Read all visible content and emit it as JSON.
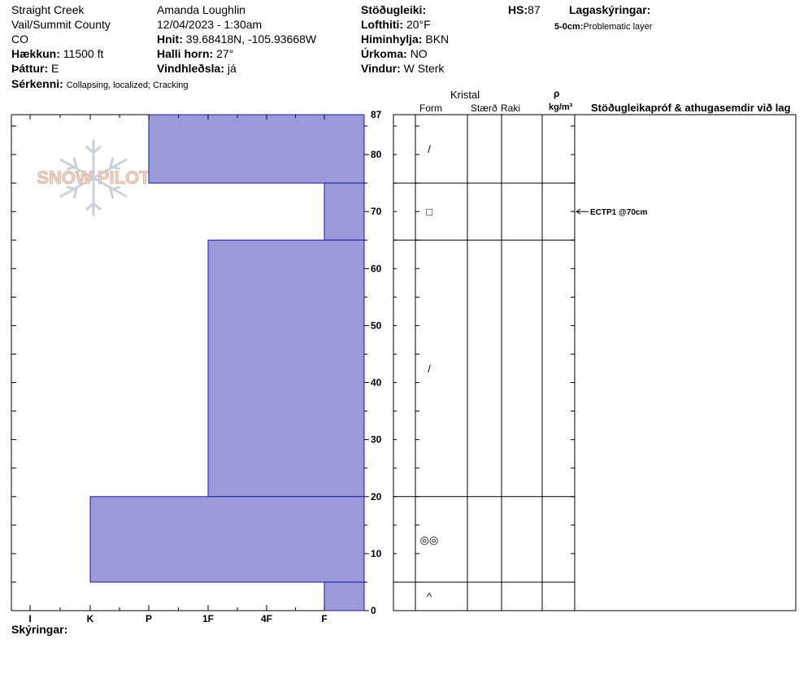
{
  "header": {
    "location": "Straight Creek",
    "region": "Vail/Summit County",
    "state": "CO",
    "elevation_label": "Hækkun:",
    "elevation_value": "11500 ft",
    "aspect_label": "Þáttur:",
    "aspect_value": "E",
    "features_label": "Sérkenni:",
    "features_value": "Collapsing, localized;  Cracking",
    "observer": "Amanda Loughlin",
    "datetime": "12/04/2023 - 1:30am",
    "coords_label": "Hnit:",
    "coords_value": "39.68418N, -105.93668W",
    "slope_label": "Halli horn:",
    "slope_value": "27°",
    "wind_loading_label": "Vindhleðsla:",
    "wind_loading_value": "já",
    "stability_label": "Stöðugleiki:",
    "air_temp_label": "Lofthiti:",
    "air_temp_value": "20°F",
    "sky_label": "Himinhylja:",
    "sky_value": "BKN",
    "precip_label": "Úrkoma:",
    "precip_value": "NO",
    "wind_label": "Vindur:",
    "wind_value": "W Sterk",
    "hs_label": "HS:",
    "hs_value": "87",
    "layer_notes_label": "Lagaskýringar:",
    "layer_note_range": "5-0cm:",
    "layer_note_text": "Problematic layer"
  },
  "logo": {
    "text": "SNOW PILOT"
  },
  "table_headers": {
    "crystal": "Kristal",
    "form": "Form",
    "size": "Stærð",
    "moisture": "Raki",
    "density_symbol": "ρ",
    "density_unit": "kg/m³",
    "tests": "Stöðugleikapróf & athugasemdir við lag"
  },
  "footer": {
    "legend_label": "Skýringar:"
  },
  "colors": {
    "layer_fill": "#9a9ad8",
    "layer_stroke": "#1c1c9c"
  },
  "chart_data": {
    "type": "bar",
    "orientation": "horizontal",
    "xlabel": "",
    "ylabel": "",
    "ylim": [
      0,
      87
    ],
    "y_ticks": [
      0,
      10,
      20,
      30,
      40,
      50,
      60,
      70,
      80,
      87
    ],
    "hardness_scale": [
      "I",
      "K",
      "P",
      "1F",
      "4F",
      "F"
    ],
    "layers": [
      {
        "top": 87,
        "bottom": 75,
        "hardness": "P",
        "form_symbol": "/"
      },
      {
        "top": 75,
        "bottom": 65,
        "hardness": "F",
        "form_symbol": "□"
      },
      {
        "top": 65,
        "bottom": 20,
        "hardness": "1F",
        "form_symbol": "/"
      },
      {
        "top": 20,
        "bottom": 5,
        "hardness": "K",
        "form_symbol": "◎◎"
      },
      {
        "top": 5,
        "bottom": 0,
        "hardness": "F",
        "form_symbol": "^"
      }
    ],
    "tests": [
      {
        "depth": 70,
        "label": "ECTP1 @70cm"
      }
    ]
  }
}
